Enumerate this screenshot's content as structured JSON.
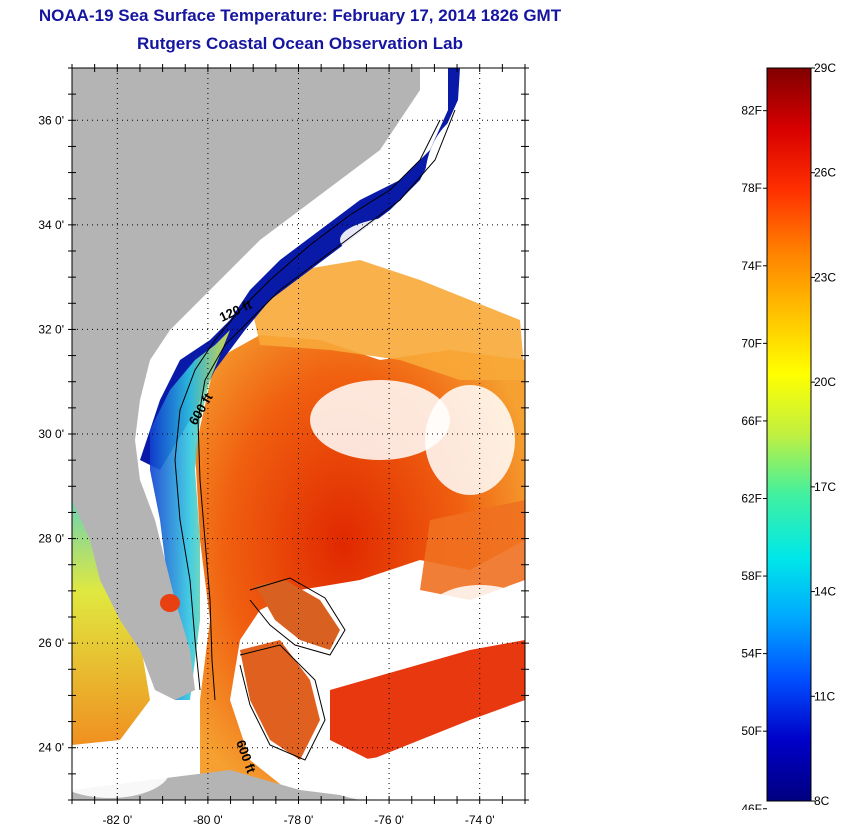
{
  "header": {
    "title": "NOAA-19 Sea Surface Temperature:  February 17, 2014 1826 GMT",
    "subtitle": "Rutgers Coastal Ocean Observation Lab"
  },
  "map": {
    "lat_ticks": [
      {
        "value": 36,
        "label": "36 0'"
      },
      {
        "value": 34,
        "label": "34 0'"
      },
      {
        "value": 32,
        "label": "32 0'"
      },
      {
        "value": 30,
        "label": "30 0'"
      },
      {
        "value": 28,
        "label": "28 0'"
      },
      {
        "value": 26,
        "label": "26 0'"
      },
      {
        "value": 24,
        "label": "24 0'"
      }
    ],
    "lon_ticks": [
      {
        "value": -82,
        "label": "-82 0'"
      },
      {
        "value": -80,
        "label": "-80 0'"
      },
      {
        "value": -78,
        "label": "-78 0'"
      },
      {
        "value": -76,
        "label": "-76 0'"
      },
      {
        "value": -74,
        "label": "-74 0'"
      }
    ],
    "lat_range": [
      23,
      37
    ],
    "lon_range": [
      -83,
      -73
    ],
    "contour_labels": {
      "shelf_120": "120 ft",
      "shelf_600": "600 ft",
      "bahamas_600": "600 ft"
    },
    "colors": {
      "land": "#b4b4b4",
      "cloud": "#ffffff",
      "cold": "#0a1aa0",
      "warm": "#e83010"
    }
  },
  "colorbar": {
    "celsius_labels": [
      "29C",
      "26C",
      "23C",
      "20C",
      "17C",
      "14C",
      "11C",
      "8C"
    ],
    "fahrenheit_labels": [
      "82F",
      "78F",
      "74F",
      "70F",
      "66F",
      "62F",
      "58F",
      "54F",
      "50F",
      "46F"
    ],
    "range_c": [
      8,
      29
    ],
    "colors": [
      "#000080",
      "#0000c8",
      "#0050ff",
      "#00a8ff",
      "#00e8e8",
      "#40f0a0",
      "#c0f040",
      "#ffff00",
      "#ffc000",
      "#ff8000",
      "#ff3000",
      "#d80000",
      "#800000"
    ]
  }
}
